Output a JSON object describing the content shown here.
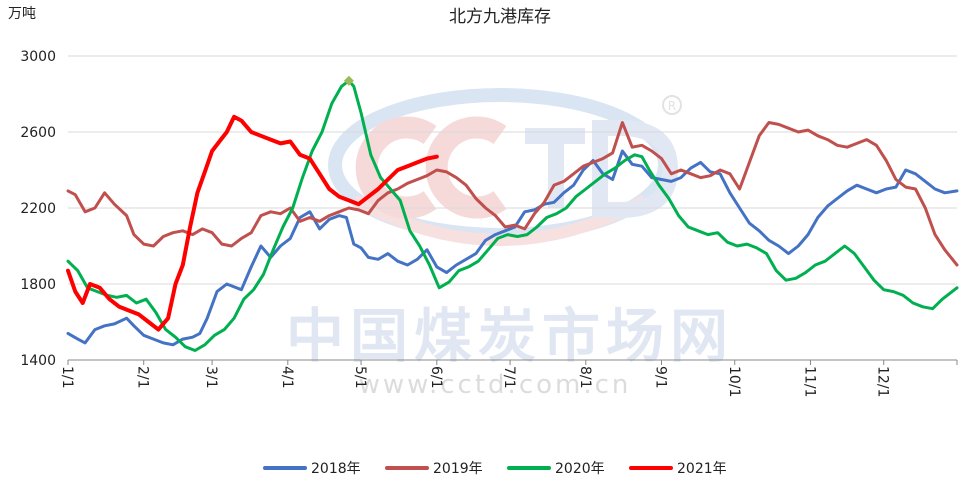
{
  "chart_data": {
    "type": "line",
    "title": "北方九港库存",
    "unit_label": "万吨",
    "ylim": [
      1400,
      3000
    ],
    "y_ticks": [
      1400,
      1800,
      2200,
      2600,
      3000
    ],
    "x_tick_labels": [
      "1/1",
      "2/1",
      "3/1",
      "4/1",
      "5/1",
      "6/1",
      "7/1",
      "8/1",
      "9/1",
      "10/1",
      "11/1",
      "12/1"
    ],
    "x_tick_days": [
      1,
      32,
      60,
      91,
      121,
      152,
      182,
      213,
      244,
      274,
      305,
      335
    ],
    "x_range_days": [
      1,
      365
    ],
    "grid": true,
    "legend_position": "bottom",
    "watermark": {
      "text": "中国煤炭市场网",
      "url": "www.cctd.com.cn",
      "logo": "CCTD",
      "mark": "®"
    },
    "series": [
      {
        "name": "2018年",
        "color": "#4472c4",
        "x": [
          1,
          5,
          8,
          12,
          16,
          20,
          25,
          28,
          32,
          36,
          40,
          44,
          48,
          52,
          55,
          58,
          62,
          66,
          72,
          76,
          80,
          84,
          88,
          92,
          96,
          100,
          104,
          108,
          112,
          115,
          118,
          121,
          124,
          128,
          132,
          136,
          140,
          144,
          148,
          152,
          156,
          160,
          164,
          168,
          172,
          176,
          180,
          184,
          188,
          192,
          196,
          200,
          204,
          208,
          212,
          216,
          220,
          224,
          228,
          232,
          236,
          240,
          244,
          248,
          252,
          256,
          260,
          264,
          268,
          272,
          276,
          280,
          284,
          288,
          292,
          296,
          300,
          304,
          308,
          312,
          316,
          320,
          324,
          328,
          332,
          336,
          340,
          344,
          348,
          352,
          356,
          360,
          365
        ],
        "values": [
          1540,
          1510,
          1490,
          1560,
          1580,
          1590,
          1620,
          1580,
          1530,
          1510,
          1490,
          1480,
          1510,
          1520,
          1540,
          1620,
          1760,
          1800,
          1770,
          1890,
          2000,
          1940,
          2000,
          2040,
          2150,
          2180,
          2090,
          2140,
          2160,
          2150,
          2010,
          1990,
          1940,
          1930,
          1960,
          1920,
          1900,
          1930,
          1980,
          1890,
          1860,
          1900,
          1930,
          1960,
          2030,
          2060,
          2080,
          2100,
          2180,
          2190,
          2220,
          2230,
          2280,
          2320,
          2400,
          2450,
          2380,
          2350,
          2500,
          2430,
          2420,
          2360,
          2350,
          2340,
          2360,
          2410,
          2440,
          2390,
          2380,
          2280,
          2200,
          2120,
          2080,
          2030,
          2000,
          1960,
          2000,
          2060,
          2150,
          2210,
          2250,
          2290,
          2320,
          2300,
          2280,
          2300,
          2310,
          2400,
          2380,
          2340,
          2300,
          2280,
          2290
        ]
      },
      {
        "name": "2019年",
        "color": "#c0504d",
        "x": [
          1,
          4,
          8,
          12,
          16,
          20,
          25,
          28,
          32,
          36,
          40,
          44,
          48,
          52,
          56,
          60,
          64,
          68,
          72,
          76,
          80,
          84,
          88,
          92,
          96,
          100,
          104,
          108,
          112,
          116,
          120,
          124,
          128,
          132,
          136,
          140,
          144,
          148,
          152,
          156,
          160,
          164,
          168,
          172,
          176,
          180,
          184,
          188,
          192,
          196,
          200,
          204,
          208,
          212,
          216,
          220,
          224,
          228,
          232,
          236,
          240,
          244,
          248,
          252,
          256,
          260,
          264,
          268,
          272,
          276,
          280,
          284,
          288,
          292,
          296,
          300,
          304,
          308,
          312,
          316,
          320,
          324,
          328,
          332,
          336,
          340,
          344,
          348,
          352,
          356,
          360,
          365
        ],
        "values": [
          2290,
          2270,
          2180,
          2200,
          2280,
          2220,
          2160,
          2060,
          2010,
          2000,
          2050,
          2070,
          2080,
          2060,
          2090,
          2070,
          2010,
          2000,
          2040,
          2070,
          2160,
          2180,
          2170,
          2200,
          2130,
          2150,
          2130,
          2160,
          2180,
          2200,
          2190,
          2170,
          2240,
          2280,
          2300,
          2330,
          2350,
          2370,
          2400,
          2390,
          2360,
          2320,
          2250,
          2200,
          2160,
          2100,
          2110,
          2090,
          2170,
          2230,
          2320,
          2340,
          2380,
          2420,
          2440,
          2460,
          2490,
          2650,
          2520,
          2530,
          2500,
          2460,
          2380,
          2400,
          2380,
          2360,
          2370,
          2400,
          2380,
          2300,
          2440,
          2580,
          2650,
          2640,
          2620,
          2600,
          2610,
          2580,
          2560,
          2530,
          2520,
          2540,
          2560,
          2530,
          2450,
          2350,
          2310,
          2300,
          2200,
          2060,
          1980,
          1900
        ]
      },
      {
        "name": "2020年",
        "color": "#00b050",
        "x": [
          1,
          5,
          9,
          13,
          17,
          21,
          25,
          29,
          33,
          37,
          41,
          45,
          49,
          53,
          57,
          61,
          65,
          69,
          73,
          77,
          81,
          85,
          89,
          93,
          97,
          101,
          105,
          109,
          113,
          116,
          118,
          121,
          125,
          129,
          133,
          137,
          141,
          145,
          149,
          153,
          157,
          161,
          165,
          169,
          173,
          177,
          181,
          185,
          189,
          193,
          197,
          201,
          205,
          209,
          213,
          217,
          221,
          225,
          229,
          233,
          236,
          239,
          243,
          247,
          251,
          255,
          259,
          263,
          267,
          271,
          275,
          279,
          283,
          287,
          291,
          295,
          299,
          303,
          307,
          311,
          315,
          319,
          323,
          327,
          331,
          335,
          339,
          343,
          347,
          351,
          355,
          359,
          365
        ],
        "values": [
          1920,
          1870,
          1780,
          1760,
          1740,
          1730,
          1740,
          1700,
          1720,
          1650,
          1560,
          1520,
          1470,
          1450,
          1480,
          1530,
          1560,
          1620,
          1720,
          1770,
          1850,
          1980,
          2100,
          2200,
          2360,
          2500,
          2600,
          2750,
          2840,
          2870,
          2840,
          2700,
          2480,
          2360,
          2300,
          2240,
          2080,
          2000,
          1900,
          1780,
          1810,
          1870,
          1890,
          1920,
          1980,
          2040,
          2060,
          2050,
          2060,
          2100,
          2150,
          2170,
          2200,
          2260,
          2300,
          2340,
          2380,
          2410,
          2450,
          2480,
          2470,
          2400,
          2320,
          2250,
          2160,
          2100,
          2080,
          2060,
          2070,
          2020,
          2000,
          2010,
          1990,
          1960,
          1870,
          1820,
          1830,
          1860,
          1900,
          1920,
          1960,
          2000,
          1960,
          1890,
          1820,
          1770,
          1760,
          1740,
          1700,
          1680,
          1670,
          1720,
          1780
        ]
      },
      {
        "name": "2021年",
        "color": "#ff0000",
        "x": [
          1,
          4,
          7,
          10,
          14,
          18,
          22,
          26,
          30,
          34,
          38,
          42,
          45,
          48,
          51,
          54,
          57,
          60,
          63,
          66,
          69,
          72,
          76,
          80,
          84,
          88,
          92,
          96,
          100,
          104,
          108,
          112,
          116,
          120,
          124,
          128,
          132,
          136,
          140,
          144,
          148,
          152
        ],
        "values": [
          1870,
          1760,
          1700,
          1800,
          1780,
          1720,
          1680,
          1660,
          1640,
          1600,
          1560,
          1620,
          1800,
          1900,
          2100,
          2280,
          2390,
          2500,
          2550,
          2600,
          2680,
          2660,
          2600,
          2580,
          2560,
          2540,
          2550,
          2480,
          2460,
          2380,
          2300,
          2260,
          2240,
          2220,
          2260,
          2300,
          2350,
          2400,
          2420,
          2440,
          2460,
          2470
        ]
      }
    ]
  }
}
